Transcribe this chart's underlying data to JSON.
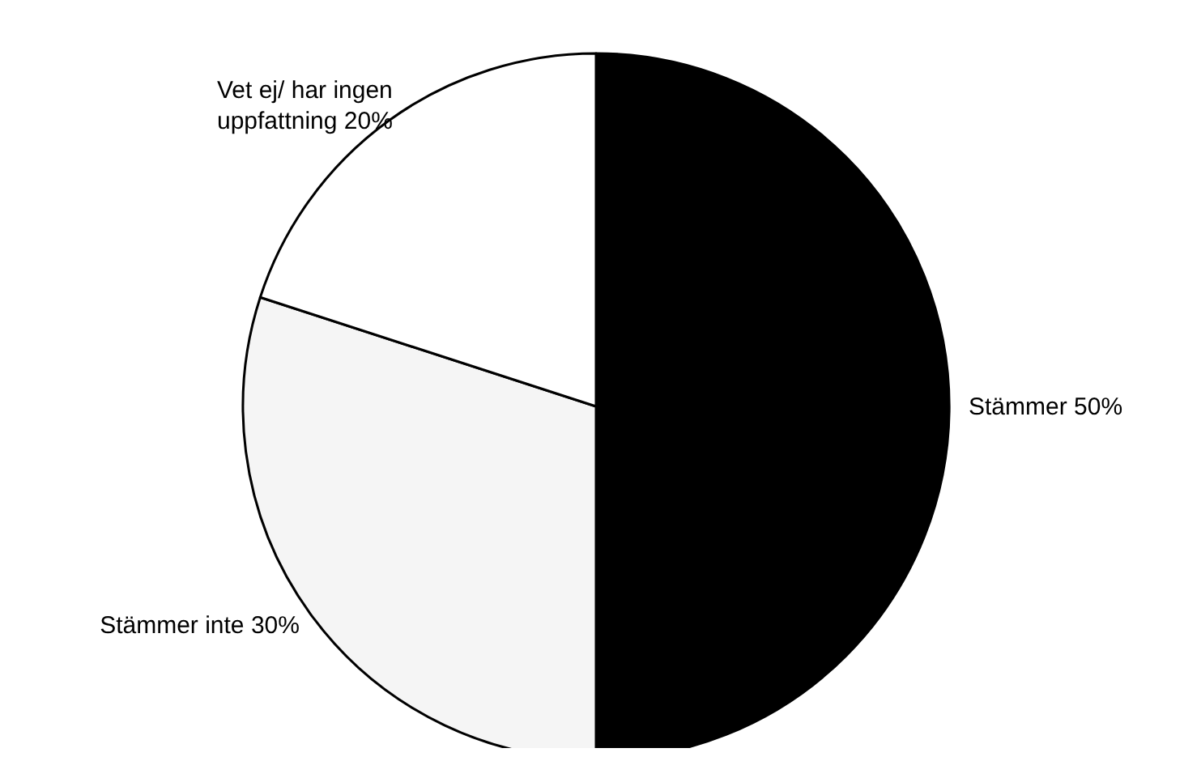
{
  "chart_data": {
    "type": "pie",
    "categories": [
      "Stämmer",
      "Stämmer inte",
      "Vet ej/ har ingen uppfattning"
    ],
    "values": [
      50,
      30,
      20
    ],
    "value_labels": [
      "50%",
      "30%",
      "20%"
    ],
    "colors": [
      "#000000",
      "#f5f5f5",
      "#ffffff"
    ]
  }
}
